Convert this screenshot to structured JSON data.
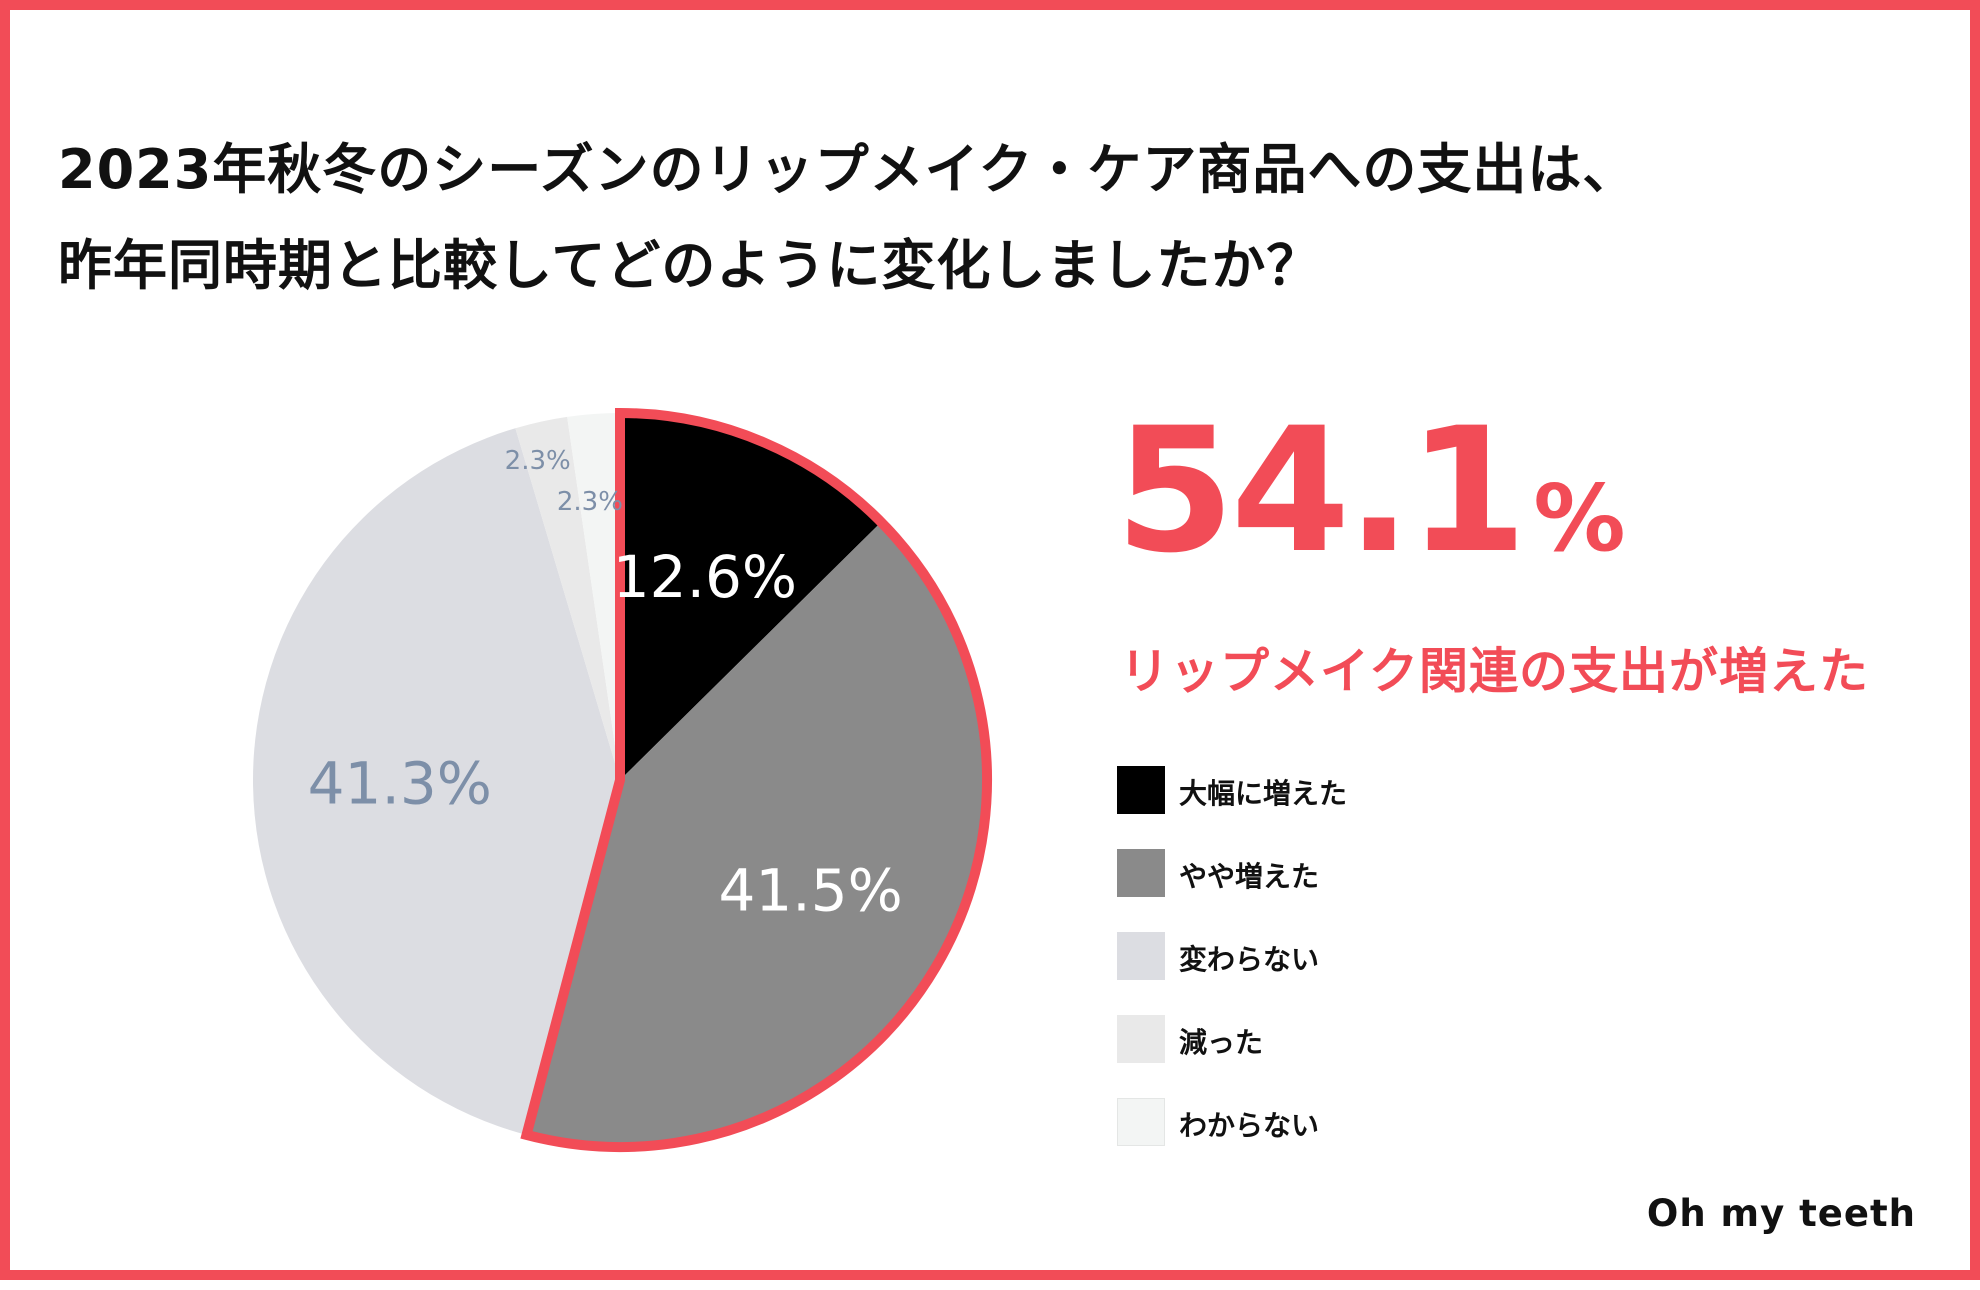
{
  "title": {
    "line1": "2023年秋冬のシーズンのリップメイク・ケア商品への支出は、",
    "line2": "昨年同時期と比較してどのように変化しましたか？"
  },
  "highlight": {
    "value": "54.1",
    "unit": "%",
    "caption": "リップメイク関連の支出が増えた",
    "color": "#f24c57"
  },
  "brand": "Oh my teeth",
  "chart_data": {
    "type": "pie",
    "title": "",
    "slices": [
      {
        "label": "大幅に増えた",
        "value": 12.6,
        "display": "12.6%",
        "color": "#000000",
        "label_color": "#ffffff",
        "highlighted": true
      },
      {
        "label": "やや増えた",
        "value": 41.5,
        "display": "41.5%",
        "color": "#8a8a8a",
        "label_color": "#ffffff",
        "highlighted": true
      },
      {
        "label": "変わらない",
        "value": 41.3,
        "display": "41.3%",
        "color": "#dcdde2",
        "label_color": "#7d8fa8",
        "highlighted": false
      },
      {
        "label": "減った",
        "value": 2.3,
        "display": "2.3%",
        "color": "#e9e9e9",
        "label_color": "#7d8fa8",
        "highlighted": false
      },
      {
        "label": "わからない",
        "value": 2.3,
        "display": "2.3%",
        "color": "#f3f5f4",
        "label_color": "#7d8fa8",
        "highlighted": false
      }
    ],
    "start": "12 o'clock",
    "direction": "clockwise",
    "highlight_outline_color": "#f24c57",
    "legend_position": "right"
  }
}
